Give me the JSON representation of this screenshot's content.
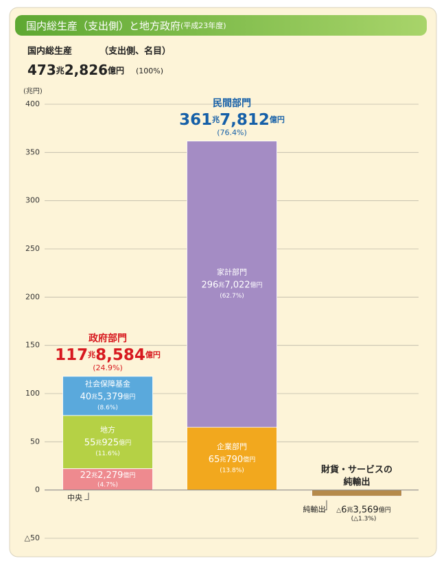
{
  "chart_data": {
    "type": "stacked_bar",
    "title": "国内総生産（支出側）と地方政府",
    "subtitle": "(平成23年度)",
    "total_name": "国内総生産",
    "total_note": "（支出側、名目）",
    "total_value_label": "473兆2,826億円",
    "total_share_label": "(100%)",
    "y_unit": "(兆円)",
    "categories": [
      "政府部門",
      "民間部門",
      "財貨・サービスの\n純輸出"
    ],
    "category_colors": [
      "#d7191f",
      "#1660a8",
      "#222222"
    ],
    "category_total_labels": [
      "117兆8,584億円",
      "361兆7,812億円"
    ],
    "category_share_labels": [
      "(24.9%)",
      "(76.4%)"
    ],
    "series": [
      {
        "name": "中央",
        "color": "#ee8a8f",
        "values": [
          22.2279,
          null,
          null
        ],
        "value_labels": [
          "22兆2,279億円",
          null,
          null
        ],
        "share_labels": [
          "(4.7%)",
          null,
          null
        ]
      },
      {
        "name": "地方",
        "color": "#b5d145",
        "values": [
          55.0925,
          null,
          null
        ],
        "value_labels": [
          "55兆925億円",
          null,
          null
        ],
        "share_labels": [
          "(11.6%)",
          null,
          null
        ]
      },
      {
        "name": "社会保障基金",
        "color": "#5aa9dc",
        "values": [
          40.5379,
          null,
          null
        ],
        "value_labels": [
          "40兆5,379億円",
          null,
          null
        ],
        "share_labels": [
          "(8.6%)",
          null,
          null
        ]
      },
      {
        "name": "企業部門",
        "color": "#f2a81e",
        "values": [
          null,
          65.079,
          null
        ],
        "value_labels": [
          null,
          "65兆790億円",
          null
        ],
        "share_labels": [
          null,
          "(13.8%)",
          null
        ]
      },
      {
        "name": "家計部門",
        "color": "#a48cc4",
        "values": [
          null,
          296.7022,
          null
        ],
        "value_labels": [
          null,
          "296兆7,022億円",
          null
        ],
        "share_labels": [
          null,
          "(62.7%)",
          null
        ]
      },
      {
        "name": "純輸出",
        "color": "#b58a4a",
        "values": [
          null,
          null,
          -6.3569
        ],
        "value_labels": [
          null,
          null,
          "△6兆3,569億円"
        ],
        "share_labels": [
          null,
          null,
          "(△1.3%)"
        ]
      }
    ],
    "ylim": [
      -50,
      400
    ],
    "yticks": [
      {
        "value": -50,
        "label": "△50"
      },
      0,
      50,
      100,
      150,
      200,
      250,
      300,
      350,
      400
    ],
    "grid": true
  }
}
